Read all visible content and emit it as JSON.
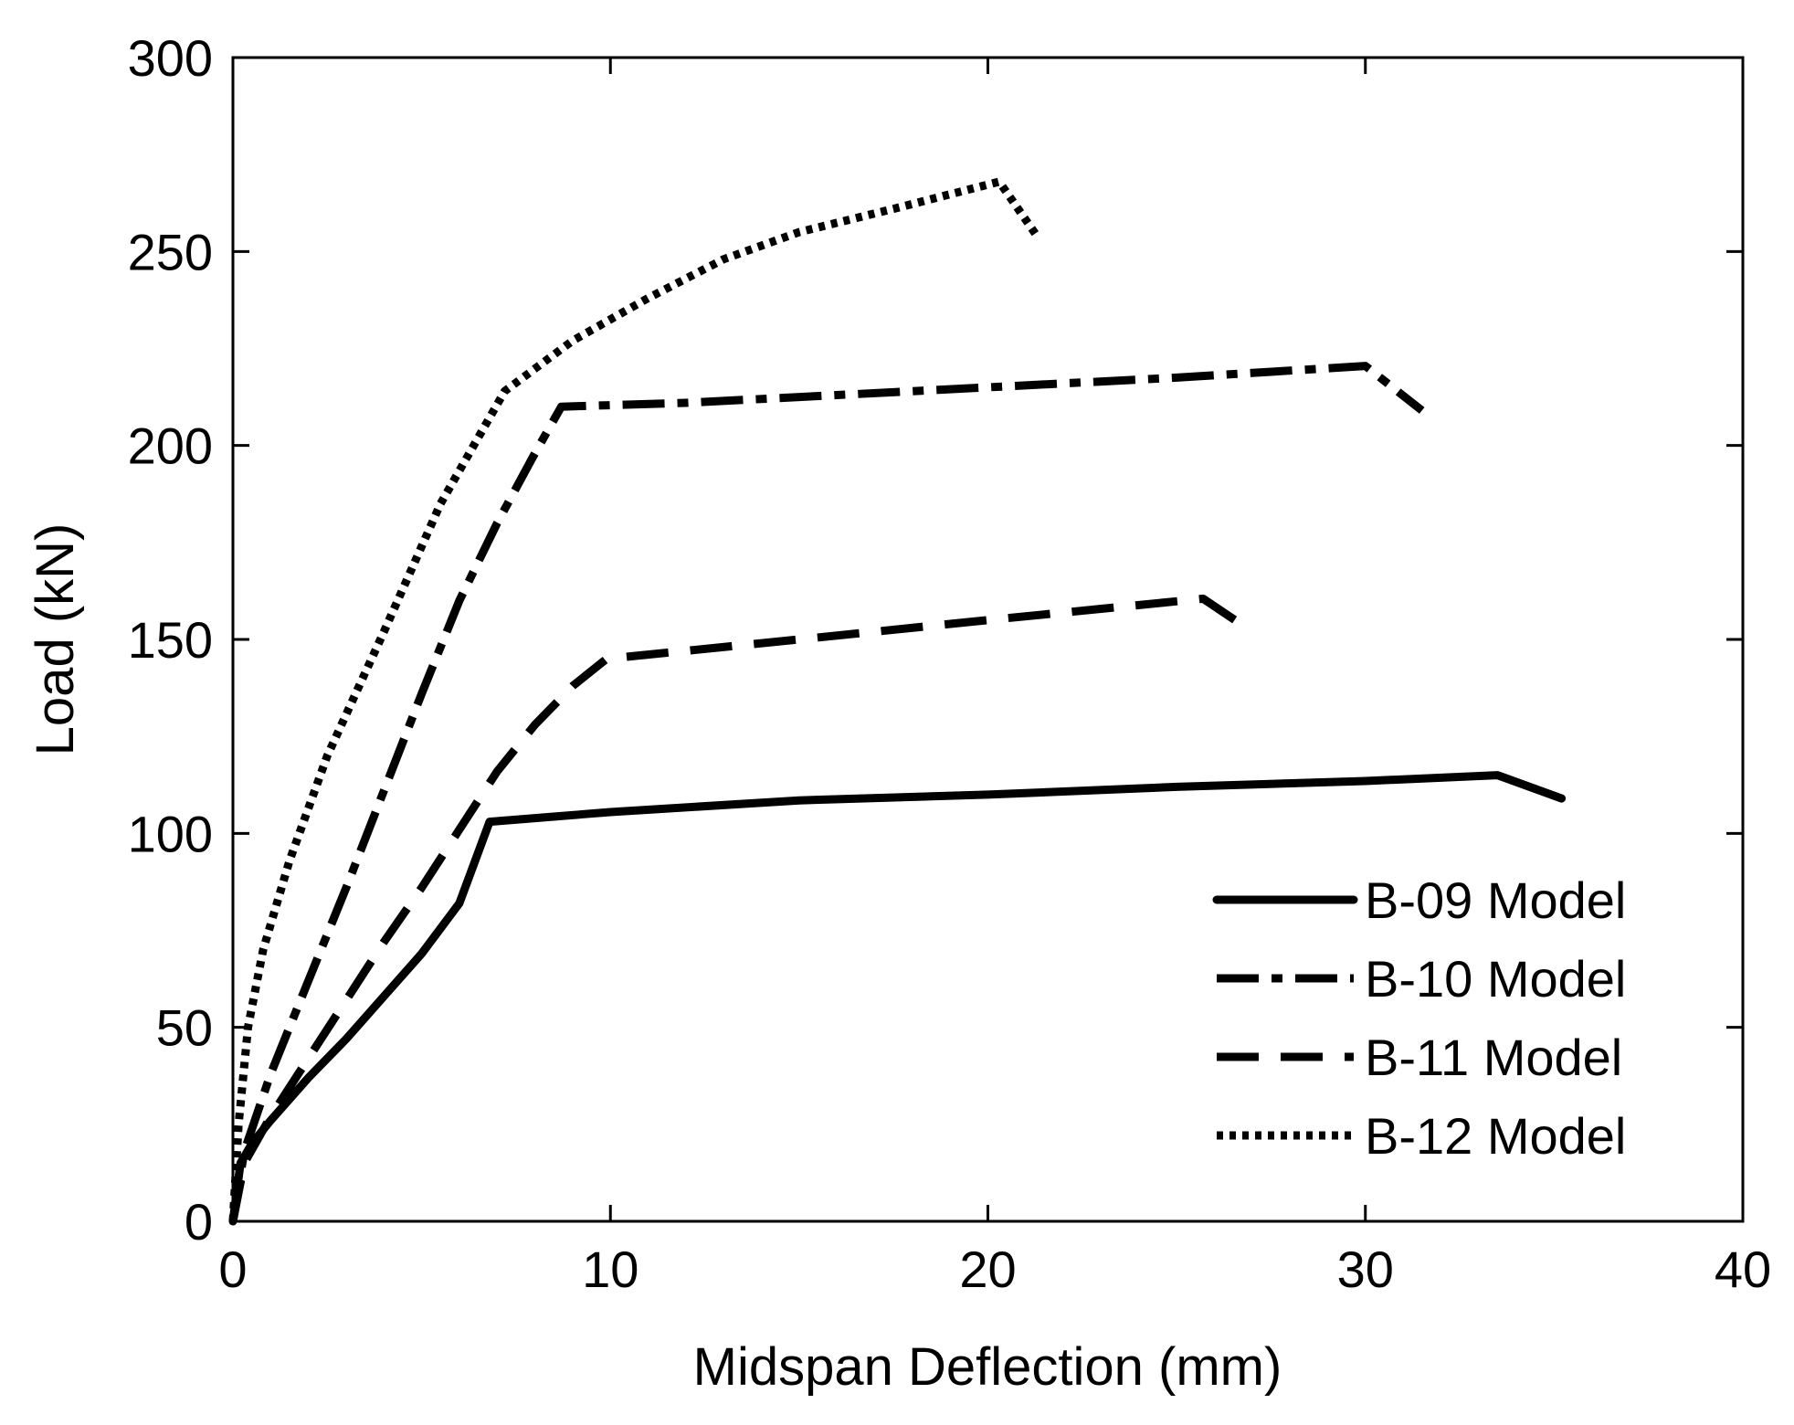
{
  "chart_data": {
    "type": "line",
    "title": "",
    "xlabel": "Midspan Deflection (mm)",
    "ylabel": "Load (kN)",
    "xlim": [
      0,
      40
    ],
    "ylim": [
      0,
      300
    ],
    "xticks": [
      0,
      10,
      20,
      30,
      40
    ],
    "yticks": [
      0,
      50,
      100,
      150,
      200,
      250,
      300
    ],
    "xtick_labels": [
      "0",
      "10",
      "20",
      "30",
      "40"
    ],
    "ytick_labels": [
      "0",
      "50",
      "100",
      "150",
      "200",
      "250",
      "300"
    ],
    "grid": false,
    "legend_position": "bottom-right",
    "series": [
      {
        "name": "B-09 Model",
        "style": "solid",
        "color": "#000000",
        "x": [
          0,
          0.2,
          0.5,
          1.0,
          2.0,
          3.0,
          4.0,
          5.0,
          6.0,
          6.8,
          10,
          15,
          20,
          25,
          30,
          33.5,
          35.2
        ],
        "y": [
          0,
          15,
          20,
          26,
          37,
          47,
          58,
          69,
          82,
          103,
          105.5,
          108.5,
          110,
          112,
          113.5,
          115,
          109
        ]
      },
      {
        "name": "B-10 Model",
        "style": "dashdot",
        "color": "#000000",
        "x": [
          0,
          0.3,
          1.0,
          2.0,
          3.0,
          4.0,
          5.0,
          6.0,
          7.0,
          8.0,
          8.7,
          12,
          16,
          20,
          25,
          30,
          31.5
        ],
        "y": [
          0,
          18,
          38,
          62,
          86,
          111,
          136,
          160,
          180,
          198,
          210,
          211,
          213,
          215,
          217.5,
          220.5,
          209
        ]
      },
      {
        "name": "B-11 Model",
        "style": "dashed",
        "color": "#000000",
        "x": [
          0,
          0.3,
          1.0,
          2.0,
          3.0,
          4.0,
          5.0,
          6.0,
          7.0,
          8.0,
          9.0,
          9.9,
          15,
          20,
          25.7,
          27
        ],
        "y": [
          0,
          15,
          27,
          42,
          57,
          72,
          86,
          101,
          116,
          128,
          138,
          145,
          150,
          155,
          160.5,
          152
        ]
      },
      {
        "name": "B-12 Model",
        "style": "dotted",
        "color": "#000000",
        "x": [
          0,
          0.15,
          0.4,
          0.8,
          1.5,
          2.5,
          4.0,
          5.5,
          7.2,
          9.0,
          11.0,
          13.0,
          15.0,
          17.5,
          20.3,
          21.3
        ],
        "y": [
          0,
          25,
          50,
          70,
          93,
          120,
          152,
          185,
          214,
          227,
          238,
          248,
          255,
          261,
          268,
          254
        ]
      }
    ]
  }
}
